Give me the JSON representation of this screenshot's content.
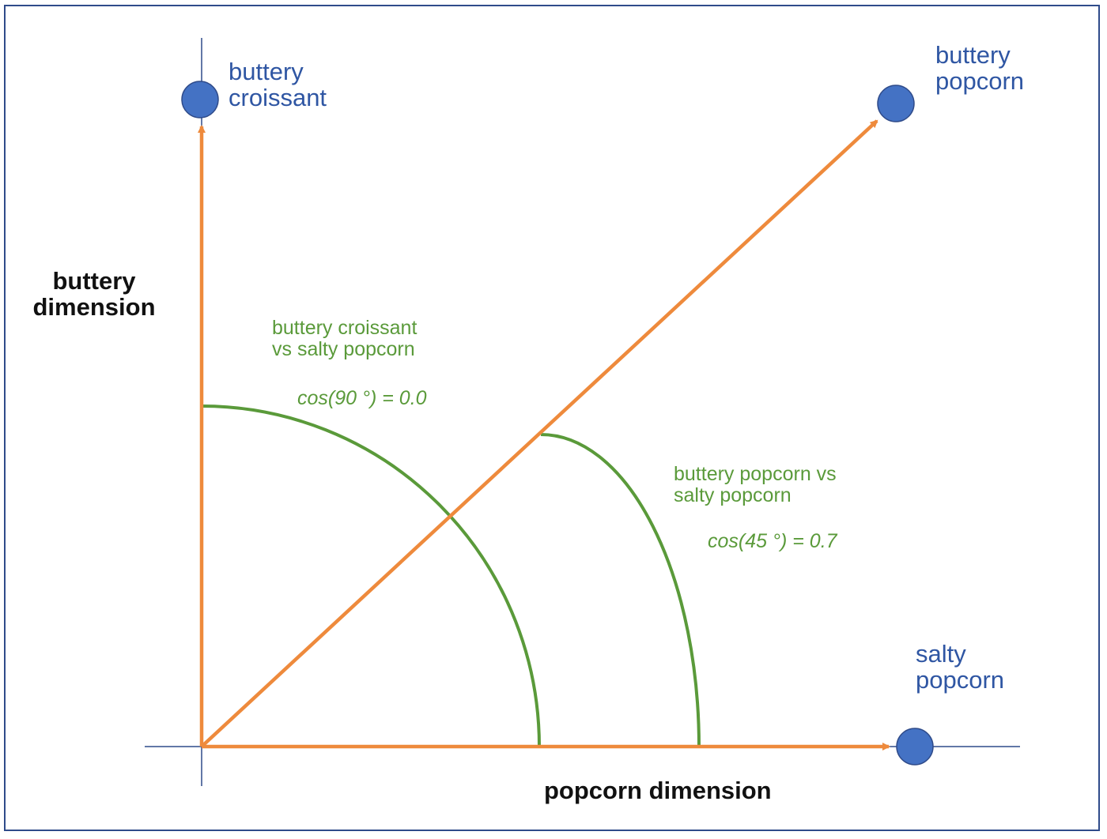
{
  "points": {
    "buttery_croissant": [
      "buttery",
      "croissant"
    ],
    "buttery_popcorn": [
      "buttery",
      "popcorn"
    ],
    "salty_popcorn": [
      "salty",
      "popcorn"
    ]
  },
  "axes": {
    "y_label": [
      "buttery",
      "dimension"
    ],
    "x_label": "popcorn dimension"
  },
  "comparisons": {
    "croissant_vs_salty": {
      "label": [
        "buttery croissant",
        "vs salty popcorn"
      ],
      "formula": "cos(90 °) = 0.0"
    },
    "popcorn_vs_salty": {
      "label": [
        "buttery popcorn vs",
        "salty popcorn"
      ],
      "formula": "cos(45 °) = 0.7"
    }
  },
  "colors": {
    "vector": "#ee8a3c",
    "arc": "#5a9a3a",
    "point": "#4472c4",
    "axis_line": "#2f4b8a",
    "point_label": "#2f56a3"
  }
}
